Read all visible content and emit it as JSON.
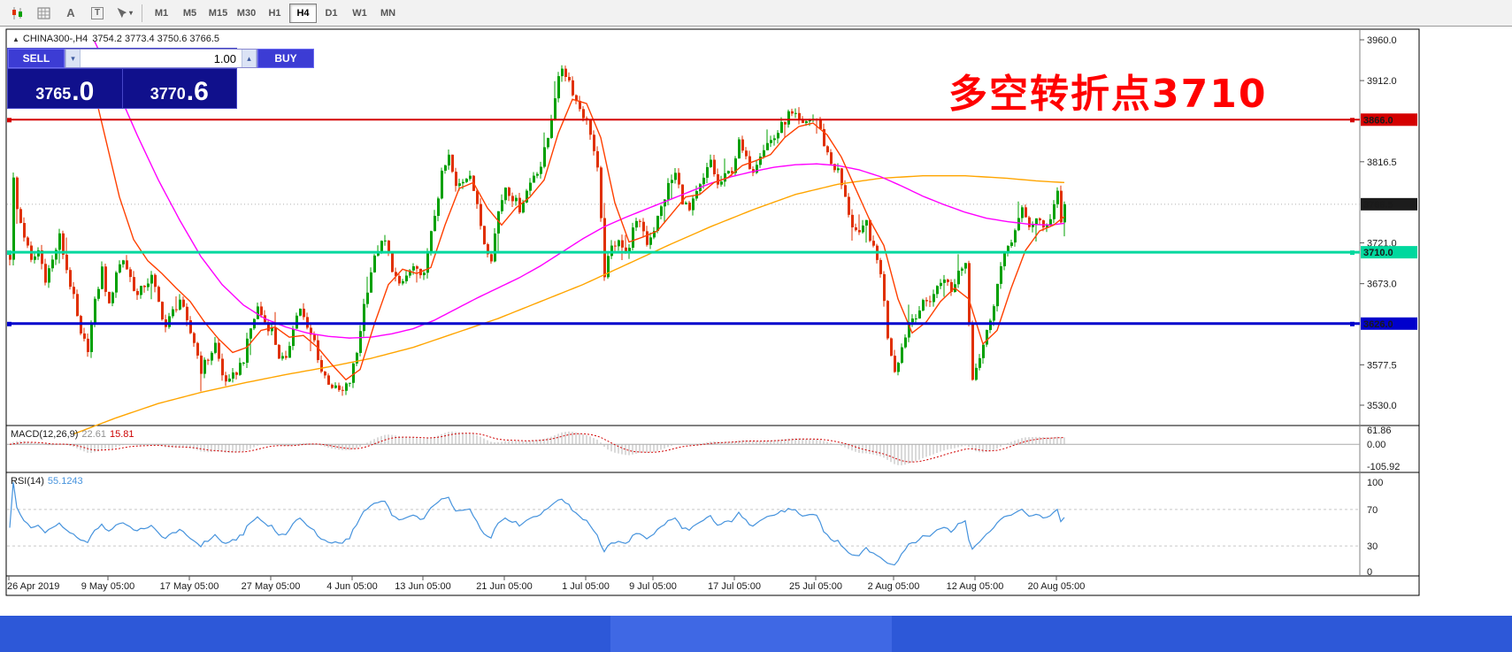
{
  "toolbar": {
    "icon_a": "A",
    "icon_t": "T",
    "timeframes": [
      "M1",
      "M5",
      "M15",
      "M30",
      "H1",
      "H4",
      "D1",
      "W1",
      "MN"
    ],
    "active_timeframe": "H4"
  },
  "icons": {
    "collapse": "▲",
    "caret": "▾",
    "volume_down": "▾",
    "volume_up": "▴"
  },
  "header": {
    "symbol_period": "CHINA300-,H4",
    "ohlc": "3754.2 3773.4 3750.6 3766.5"
  },
  "trade_panel": {
    "sell_label": "SELL",
    "buy_label": "BUY",
    "volume": "1.00",
    "sell_price_main": "3765",
    "sell_price_frac": ".0",
    "buy_price_main": "3770",
    "buy_price_frac": ".6"
  },
  "annotation": {
    "text": "多空转折点3710",
    "color": "#ff0000"
  },
  "panels": {
    "macd": {
      "name": "MACD(12,26,9)",
      "main_value": "22.61",
      "signal_value": "15.81"
    },
    "rsi": {
      "name": "RSI(14)",
      "value": "55.1243"
    }
  },
  "axes": {
    "price_ticks": [
      "3960.0",
      "3912.0",
      "3816.5",
      "3721.0",
      "3673.0",
      "3577.5",
      "3530.0"
    ],
    "price_tags": [
      {
        "label": "3866.0",
        "price": 3866.0,
        "color": "#d40000",
        "name": "resistance-line-tag"
      },
      {
        "label": "3766.5",
        "price": 3766.5,
        "color": "#1c1c1c",
        "name": "current-price-tag"
      },
      {
        "label": "3710.0",
        "price": 3710.0,
        "color": "#00d89e",
        "name": "pivot-line-tag"
      },
      {
        "label": "3626.0",
        "price": 3626.0,
        "color": "#0000cc",
        "name": "support-line-tag"
      }
    ],
    "macd_ticks": [
      {
        "label": "61.86",
        "value": 61.86
      },
      {
        "label": "0.00",
        "value": 0
      },
      {
        "label": "-105.92",
        "value": -105.92
      }
    ],
    "rsi_ticks": [
      {
        "label": "100",
        "value": 100
      },
      {
        "label": "70",
        "value": 70
      },
      {
        "label": "30",
        "value": 30
      },
      {
        "label": "0",
        "value": 0
      }
    ],
    "time_labels": [
      {
        "text": "26 Apr 2019",
        "bar": 0
      },
      {
        "text": "9 May 05:00",
        "bar": 28
      },
      {
        "text": "17 May 05:00",
        "bar": 51
      },
      {
        "text": "27 May 05:00",
        "bar": 74
      },
      {
        "text": "4 Jun 05:00",
        "bar": 97
      },
      {
        "text": "13 Jun 05:00",
        "bar": 117
      },
      {
        "text": "21 Jun 05:00",
        "bar": 140
      },
      {
        "text": "1 Jul 05:00",
        "bar": 163
      },
      {
        "text": "9 Jul 05:00",
        "bar": 182
      },
      {
        "text": "17 Jul 05:00",
        "bar": 205
      },
      {
        "text": "25 Jul 05:00",
        "bar": 228
      },
      {
        "text": "2 Aug 05:00",
        "bar": 250
      },
      {
        "text": "12 Aug 05:00",
        "bar": 273
      },
      {
        "text": "20 Aug 05:00",
        "bar": 296
      }
    ]
  },
  "hlines": [
    {
      "price": 3866.0,
      "color": "#d40000",
      "width": 2
    },
    {
      "price": 3710.0,
      "color": "#00d89e",
      "width": 3
    },
    {
      "price": 3626.0,
      "color": "#0000cc",
      "width": 3
    }
  ],
  "bid_price": 3766.5,
  "colors": {
    "up": "#00a000",
    "down": "#e03000",
    "ma_fast": "#ff4000",
    "ma_mid": "#ff00ff",
    "ma_slow": "#ffa500",
    "macd_hist": "#b4b4b4",
    "macd_signal": "#d00000",
    "rsi_line": "#4693dd"
  },
  "chart_data": {
    "type": "candlestick",
    "symbol": "CHINA300-",
    "timeframe": "H4",
    "current_bar": {
      "open": 3754.2,
      "high": 3773.4,
      "low": 3750.6,
      "close": 3766.5
    },
    "price_range": [
      3530.0,
      3960.0
    ],
    "bars": 299,
    "close_anchors": [
      [
        0,
        3705
      ],
      [
        1,
        3795
      ],
      [
        2,
        3760
      ],
      [
        4,
        3730
      ],
      [
        6,
        3698
      ],
      [
        8,
        3712
      ],
      [
        10,
        3680
      ],
      [
        12,
        3700
      ],
      [
        14,
        3728
      ],
      [
        16,
        3690
      ],
      [
        18,
        3655
      ],
      [
        20,
        3610
      ],
      [
        22,
        3598
      ],
      [
        24,
        3650
      ],
      [
        26,
        3690
      ],
      [
        28,
        3645
      ],
      [
        30,
        3688
      ],
      [
        32,
        3702
      ],
      [
        34,
        3680
      ],
      [
        36,
        3658
      ],
      [
        38,
        3672
      ],
      [
        40,
        3680
      ],
      [
        42,
        3650
      ],
      [
        44,
        3622
      ],
      [
        46,
        3640
      ],
      [
        48,
        3655
      ],
      [
        50,
        3625
      ],
      [
        52,
        3605
      ],
      [
        54,
        3572
      ],
      [
        56,
        3585
      ],
      [
        58,
        3602
      ],
      [
        60,
        3565
      ],
      [
        62,
        3556
      ],
      [
        64,
        3570
      ],
      [
        66,
        3585
      ],
      [
        68,
        3620
      ],
      [
        70,
        3645
      ],
      [
        72,
        3628
      ],
      [
        74,
        3618
      ],
      [
        76,
        3588
      ],
      [
        78,
        3580
      ],
      [
        80,
        3625
      ],
      [
        82,
        3645
      ],
      [
        84,
        3618
      ],
      [
        86,
        3605
      ],
      [
        88,
        3570
      ],
      [
        90,
        3558
      ],
      [
        92,
        3548
      ],
      [
        94,
        3545
      ],
      [
        96,
        3558
      ],
      [
        98,
        3592
      ],
      [
        100,
        3648
      ],
      [
        102,
        3688
      ],
      [
        104,
        3715
      ],
      [
        106,
        3722
      ],
      [
        108,
        3692
      ],
      [
        110,
        3668
      ],
      [
        112,
        3682
      ],
      [
        114,
        3692
      ],
      [
        116,
        3678
      ],
      [
        118,
        3705
      ],
      [
        120,
        3755
      ],
      [
        122,
        3800
      ],
      [
        124,
        3822
      ],
      [
        126,
        3785
      ],
      [
        128,
        3795
      ],
      [
        130,
        3805
      ],
      [
        132,
        3762
      ],
      [
        134,
        3722
      ],
      [
        136,
        3705
      ],
      [
        138,
        3758
      ],
      [
        140,
        3788
      ],
      [
        142,
        3775
      ],
      [
        144,
        3762
      ],
      [
        146,
        3782
      ],
      [
        148,
        3802
      ],
      [
        150,
        3812
      ],
      [
        152,
        3845
      ],
      [
        154,
        3895
      ],
      [
        156,
        3928
      ],
      [
        158,
        3912
      ],
      [
        160,
        3888
      ],
      [
        162,
        3872
      ],
      [
        164,
        3852
      ],
      [
        166,
        3805
      ],
      [
        168,
        3685
      ],
      [
        170,
        3715
      ],
      [
        172,
        3728
      ],
      [
        174,
        3705
      ],
      [
        176,
        3735
      ],
      [
        178,
        3748
      ],
      [
        180,
        3722
      ],
      [
        182,
        3738
      ],
      [
        184,
        3762
      ],
      [
        186,
        3788
      ],
      [
        188,
        3802
      ],
      [
        190,
        3772
      ],
      [
        192,
        3758
      ],
      [
        194,
        3778
      ],
      [
        196,
        3795
      ],
      [
        198,
        3818
      ],
      [
        200,
        3788
      ],
      [
        202,
        3798
      ],
      [
        204,
        3808
      ],
      [
        206,
        3838
      ],
      [
        208,
        3818
      ],
      [
        210,
        3808
      ],
      [
        212,
        3828
      ],
      [
        214,
        3838
      ],
      [
        216,
        3845
      ],
      [
        218,
        3858
      ],
      [
        220,
        3872
      ],
      [
        222,
        3868
      ],
      [
        224,
        3858
      ],
      [
        226,
        3868
      ],
      [
        228,
        3866
      ],
      [
        230,
        3838
      ],
      [
        232,
        3815
      ],
      [
        234,
        3805
      ],
      [
        236,
        3772
      ],
      [
        238,
        3742
      ],
      [
        240,
        3728
      ],
      [
        242,
        3745
      ],
      [
        244,
        3712
      ],
      [
        246,
        3688
      ],
      [
        248,
        3612
      ],
      [
        250,
        3572
      ],
      [
        252,
        3598
      ],
      [
        254,
        3628
      ],
      [
        256,
        3638
      ],
      [
        258,
        3648
      ],
      [
        260,
        3655
      ],
      [
        262,
        3668
      ],
      [
        264,
        3682
      ],
      [
        266,
        3662
      ],
      [
        268,
        3688
      ],
      [
        270,
        3698
      ],
      [
        272,
        3565
      ],
      [
        274,
        3588
      ],
      [
        276,
        3615
      ],
      [
        278,
        3652
      ],
      [
        280,
        3692
      ],
      [
        282,
        3718
      ],
      [
        284,
        3735
      ],
      [
        286,
        3758
      ],
      [
        288,
        3742
      ],
      [
        290,
        3748
      ],
      [
        292,
        3738
      ],
      [
        294,
        3752
      ],
      [
        296,
        3782
      ],
      [
        297,
        3748
      ],
      [
        298,
        3766.5
      ]
    ],
    "ma_fast_anchors": [
      [
        23,
        3915
      ],
      [
        27,
        3845
      ],
      [
        31,
        3775
      ],
      [
        35,
        3725
      ],
      [
        39,
        3700
      ],
      [
        43,
        3685
      ],
      [
        47,
        3668
      ],
      [
        51,
        3652
      ],
      [
        55,
        3628
      ],
      [
        59,
        3608
      ],
      [
        63,
        3592
      ],
      [
        67,
        3598
      ],
      [
        71,
        3618
      ],
      [
        75,
        3622
      ],
      [
        79,
        3610
      ],
      [
        83,
        3612
      ],
      [
        87,
        3598
      ],
      [
        91,
        3578
      ],
      [
        95,
        3560
      ],
      [
        99,
        3572
      ],
      [
        103,
        3625
      ],
      [
        107,
        3672
      ],
      [
        111,
        3690
      ],
      [
        115,
        3685
      ],
      [
        119,
        3692
      ],
      [
        123,
        3742
      ],
      [
        127,
        3785
      ],
      [
        131,
        3792
      ],
      [
        135,
        3762
      ],
      [
        139,
        3742
      ],
      [
        143,
        3762
      ],
      [
        147,
        3775
      ],
      [
        151,
        3795
      ],
      [
        155,
        3850
      ],
      [
        159,
        3890
      ],
      [
        163,
        3885
      ],
      [
        167,
        3845
      ],
      [
        171,
        3768
      ],
      [
        175,
        3722
      ],
      [
        179,
        3728
      ],
      [
        183,
        3735
      ],
      [
        187,
        3755
      ],
      [
        191,
        3775
      ],
      [
        195,
        3778
      ],
      [
        199,
        3792
      ],
      [
        203,
        3798
      ],
      [
        207,
        3812
      ],
      [
        211,
        3818
      ],
      [
        215,
        3825
      ],
      [
        219,
        3845
      ],
      [
        223,
        3858
      ],
      [
        227,
        3862
      ],
      [
        231,
        3848
      ],
      [
        235,
        3822
      ],
      [
        239,
        3785
      ],
      [
        243,
        3748
      ],
      [
        247,
        3718
      ],
      [
        251,
        3655
      ],
      [
        255,
        3615
      ],
      [
        259,
        3628
      ],
      [
        263,
        3652
      ],
      [
        267,
        3668
      ],
      [
        271,
        3655
      ],
      [
        275,
        3602
      ],
      [
        279,
        3618
      ],
      [
        283,
        3668
      ],
      [
        287,
        3712
      ],
      [
        291,
        3735
      ],
      [
        295,
        3742
      ],
      [
        298,
        3752
      ]
    ],
    "ma_mid_anchors": [
      [
        24,
        3958
      ],
      [
        30,
        3905
      ],
      [
        36,
        3848
      ],
      [
        42,
        3795
      ],
      [
        48,
        3748
      ],
      [
        54,
        3705
      ],
      [
        60,
        3672
      ],
      [
        66,
        3648
      ],
      [
        72,
        3632
      ],
      [
        78,
        3622
      ],
      [
        84,
        3615
      ],
      [
        90,
        3611
      ],
      [
        96,
        3609
      ],
      [
        102,
        3610
      ],
      [
        108,
        3614
      ],
      [
        114,
        3620
      ],
      [
        120,
        3630
      ],
      [
        126,
        3643
      ],
      [
        132,
        3656
      ],
      [
        138,
        3668
      ],
      [
        144,
        3680
      ],
      [
        150,
        3694
      ],
      [
        156,
        3710
      ],
      [
        162,
        3726
      ],
      [
        168,
        3740
      ],
      [
        174,
        3751
      ],
      [
        180,
        3761
      ],
      [
        186,
        3771
      ],
      [
        192,
        3781
      ],
      [
        198,
        3791
      ],
      [
        204,
        3799
      ],
      [
        210,
        3805
      ],
      [
        216,
        3810
      ],
      [
        222,
        3813
      ],
      [
        228,
        3814
      ],
      [
        234,
        3812
      ],
      [
        240,
        3807
      ],
      [
        246,
        3799
      ],
      [
        252,
        3788
      ],
      [
        258,
        3776
      ],
      [
        264,
        3766
      ],
      [
        270,
        3757
      ],
      [
        276,
        3750
      ],
      [
        282,
        3746
      ],
      [
        288,
        3743
      ],
      [
        294,
        3742
      ],
      [
        298,
        3744
      ]
    ],
    "ma_slow_anchors": [
      [
        18,
        3496
      ],
      [
        30,
        3515
      ],
      [
        42,
        3532
      ],
      [
        54,
        3545
      ],
      [
        66,
        3556
      ],
      [
        78,
        3566
      ],
      [
        90,
        3575
      ],
      [
        102,
        3585
      ],
      [
        114,
        3598
      ],
      [
        126,
        3615
      ],
      [
        138,
        3632
      ],
      [
        150,
        3652
      ],
      [
        162,
        3672
      ],
      [
        174,
        3695
      ],
      [
        186,
        3718
      ],
      [
        198,
        3740
      ],
      [
        210,
        3760
      ],
      [
        222,
        3778
      ],
      [
        234,
        3790
      ],
      [
        246,
        3797
      ],
      [
        258,
        3800
      ],
      [
        270,
        3800
      ],
      [
        282,
        3797
      ],
      [
        290,
        3794
      ],
      [
        298,
        3792
      ]
    ],
    "indicators": {
      "macd": {
        "params": [
          12,
          26,
          9
        ],
        "range": [
          -105.92,
          61.86
        ],
        "current_main": 22.61,
        "current_signal": 15.81
      },
      "rsi": {
        "params": [
          14
        ],
        "levels": [
          70,
          30
        ],
        "range": [
          0,
          100
        ],
        "current": 55.1243
      }
    }
  }
}
